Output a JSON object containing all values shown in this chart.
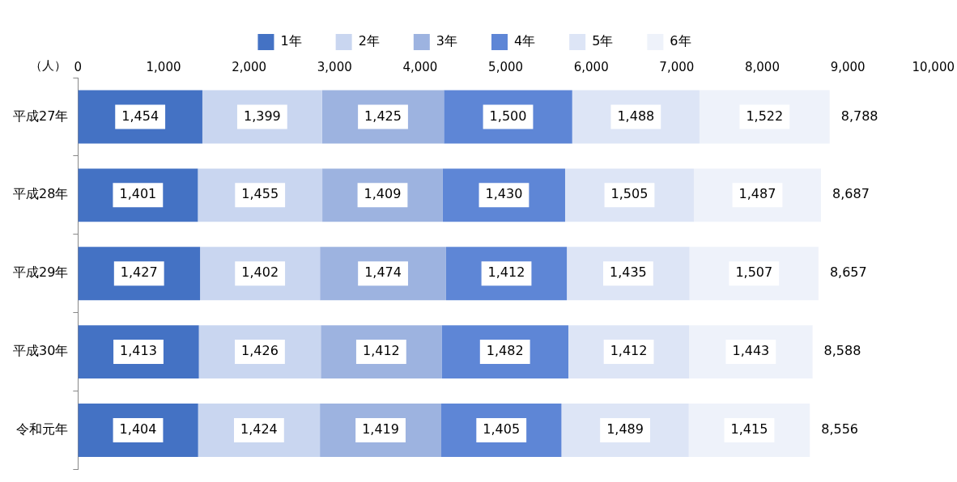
{
  "chart_data": {
    "type": "bar",
    "orientation": "horizontal",
    "stacked": true,
    "xlabel": "（人）",
    "categories": [
      "平成27年",
      "平成28年",
      "平成29年",
      "平成30年",
      "令和元年"
    ],
    "series": [
      {
        "name": "1年",
        "color": "#4472c4",
        "values": [
          1454,
          1401,
          1427,
          1413,
          1404
        ],
        "value_labels": [
          "1,454",
          "1,401",
          "1,427",
          "1,413",
          "1,404"
        ]
      },
      {
        "name": "2年",
        "color": "#c9d6f0",
        "values": [
          1399,
          1455,
          1402,
          1426,
          1424
        ],
        "value_labels": [
          "1,399",
          "1,455",
          "1,402",
          "1,426",
          "1,424"
        ]
      },
      {
        "name": "3年",
        "color": "#9db3e0",
        "values": [
          1425,
          1409,
          1474,
          1412,
          1419
        ],
        "value_labels": [
          "1,425",
          "1,409",
          "1,474",
          "1,412",
          "1,419"
        ]
      },
      {
        "name": "4年",
        "color": "#5e86d6",
        "values": [
          1500,
          1430,
          1412,
          1482,
          1405
        ],
        "value_labels": [
          "1,500",
          "1,430",
          "1,412",
          "1,482",
          "1,405"
        ]
      },
      {
        "name": "5年",
        "color": "#dde5f6",
        "values": [
          1488,
          1505,
          1435,
          1412,
          1489
        ],
        "value_labels": [
          "1,488",
          "1,505",
          "1,435",
          "1,412",
          "1,489"
        ]
      },
      {
        "name": "6年",
        "color": "#eef2fa",
        "values": [
          1522,
          1487,
          1507,
          1443,
          1415
        ],
        "value_labels": [
          "1,522",
          "1,487",
          "1,507",
          "1,443",
          "1,415"
        ]
      }
    ],
    "xlim": [
      0,
      10000
    ],
    "xticks": [
      0,
      {
        "value": 1000,
        "label": "1,000"
      },
      {
        "value": 2000,
        "label": "2,000"
      },
      {
        "value": 3000,
        "label": "3,000"
      },
      {
        "value": 4000,
        "label": "4,000"
      },
      {
        "value": 5000,
        "label": "5,000"
      },
      {
        "value": 6000,
        "label": "6,000"
      },
      {
        "value": 7000,
        "label": "7,000"
      },
      {
        "value": 8000,
        "label": "8,000"
      },
      {
        "value": 9000,
        "label": "9,000"
      },
      {
        "value": 10000,
        "label": "10,000"
      }
    ],
    "totals": [
      "8,788",
      "8,687",
      "8,657",
      "8,588",
      "8,556"
    ],
    "legend": "top",
    "grid": false
  }
}
